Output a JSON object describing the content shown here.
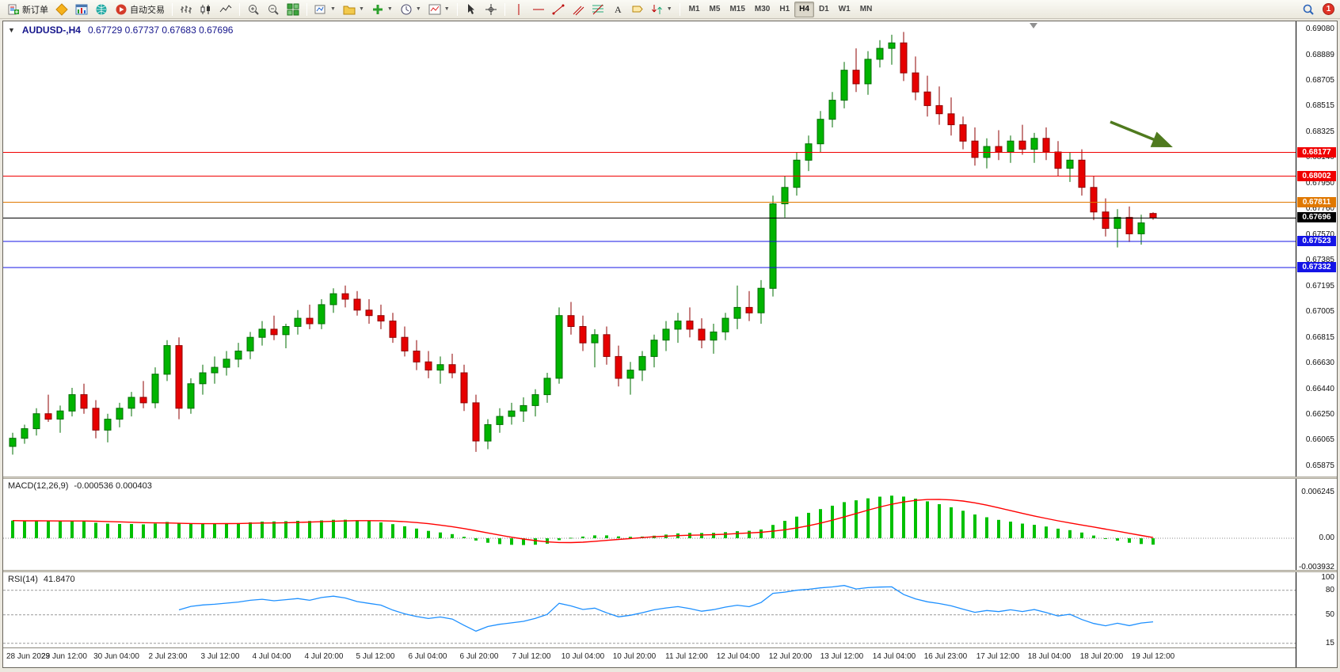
{
  "toolbar": {
    "new_order_label": "新订单",
    "autotrade_label": "自动交易",
    "timeframes": [
      "M1",
      "M5",
      "M15",
      "M30",
      "H1",
      "H4",
      "D1",
      "W1",
      "MN"
    ],
    "active_timeframe": "H4",
    "notification_count": "1",
    "icons": [
      "new-order",
      "metaquotes",
      "charts-window",
      "community",
      "autotrade",
      "bar-chart-type",
      "candlestick-type",
      "line-chart-type",
      "zoom-in",
      "zoom-out",
      "tile-windows",
      "new-chart",
      "profiles",
      "indicators",
      "periods",
      "templates",
      "cursor",
      "crosshair",
      "vertical-line",
      "horizontal-line",
      "trendline",
      "equidistant-channel",
      "fibonacci",
      "text",
      "text-label",
      "arrow-objects",
      "search",
      "alerts"
    ]
  },
  "chart_data": {
    "type": "candlestick",
    "symbol": "AUDUSD",
    "period": "H4",
    "title": "AUDUSD-,H4",
    "ohlc_text": "0.67729 0.67737 0.67683 0.67696",
    "price_axis_max": 0.6908,
    "price_axis_min": 0.65875,
    "price_axis": [
      "0.69080",
      "0.68889",
      "0.68705",
      "0.68515",
      "0.68325",
      "0.68140",
      "0.67950",
      "0.67760",
      "0.67570",
      "0.67385",
      "0.67195",
      "0.67005",
      "0.66815",
      "0.66630",
      "0.66440",
      "0.66250",
      "0.66065",
      "0.65875"
    ],
    "hlines": [
      {
        "price": "0.68177",
        "value": 0.68177,
        "color": "#f00000",
        "role": "resistance"
      },
      {
        "price": "0.68002",
        "value": 0.68002,
        "color": "#f00000",
        "role": "resistance"
      },
      {
        "price": "0.67811",
        "value": 0.67811,
        "color": "#e07800",
        "role": "pivot"
      },
      {
        "price": "0.67696",
        "value": 0.67696,
        "color": "#000000",
        "role": "current-price"
      },
      {
        "price": "0.67523",
        "value": 0.67523,
        "color": "#1414e6",
        "role": "support"
      },
      {
        "price": "0.67332",
        "value": 0.67332,
        "color": "#1414e6",
        "role": "support"
      }
    ],
    "candles": [
      [
        0.6602,
        0.6612,
        0.6596,
        0.6608
      ],
      [
        0.6608,
        0.6618,
        0.6604,
        0.6615
      ],
      [
        0.6615,
        0.663,
        0.661,
        0.6626
      ],
      [
        0.6626,
        0.664,
        0.662,
        0.6622
      ],
      [
        0.6622,
        0.6632,
        0.6612,
        0.6628
      ],
      [
        0.6628,
        0.6645,
        0.6624,
        0.664
      ],
      [
        0.664,
        0.6648,
        0.6626,
        0.663
      ],
      [
        0.663,
        0.6636,
        0.6608,
        0.6614
      ],
      [
        0.6614,
        0.6626,
        0.6605,
        0.6622
      ],
      [
        0.6622,
        0.6634,
        0.6616,
        0.663
      ],
      [
        0.663,
        0.6642,
        0.6624,
        0.6638
      ],
      [
        0.6638,
        0.665,
        0.663,
        0.6634
      ],
      [
        0.6634,
        0.666,
        0.663,
        0.6655
      ],
      [
        0.6655,
        0.668,
        0.665,
        0.6676
      ],
      [
        0.6676,
        0.6682,
        0.6622,
        0.663
      ],
      [
        0.663,
        0.6652,
        0.6626,
        0.6648
      ],
      [
        0.6648,
        0.6662,
        0.664,
        0.6656
      ],
      [
        0.6656,
        0.6668,
        0.6648,
        0.666
      ],
      [
        0.666,
        0.6672,
        0.6654,
        0.6666
      ],
      [
        0.6666,
        0.6678,
        0.666,
        0.6672
      ],
      [
        0.6672,
        0.6686,
        0.6666,
        0.6682
      ],
      [
        0.6682,
        0.6694,
        0.6676,
        0.6688
      ],
      [
        0.6688,
        0.6698,
        0.668,
        0.6684
      ],
      [
        0.6684,
        0.6692,
        0.6674,
        0.669
      ],
      [
        0.669,
        0.6702,
        0.6684,
        0.6696
      ],
      [
        0.6696,
        0.6706,
        0.6688,
        0.6692
      ],
      [
        0.6692,
        0.671,
        0.6688,
        0.6706
      ],
      [
        0.6706,
        0.6718,
        0.67,
        0.6714
      ],
      [
        0.6714,
        0.672,
        0.6704,
        0.671
      ],
      [
        0.671,
        0.6716,
        0.6698,
        0.6702
      ],
      [
        0.6702,
        0.671,
        0.6692,
        0.6698
      ],
      [
        0.6698,
        0.6706,
        0.6688,
        0.6694
      ],
      [
        0.6694,
        0.67,
        0.6678,
        0.6682
      ],
      [
        0.6682,
        0.669,
        0.6668,
        0.6672
      ],
      [
        0.6672,
        0.668,
        0.6658,
        0.6664
      ],
      [
        0.6664,
        0.6672,
        0.6652,
        0.6658
      ],
      [
        0.6658,
        0.6668,
        0.6648,
        0.6662
      ],
      [
        0.6662,
        0.667,
        0.6652,
        0.6656
      ],
      [
        0.6656,
        0.6662,
        0.6628,
        0.6634
      ],
      [
        0.6634,
        0.664,
        0.6598,
        0.6606
      ],
      [
        0.6606,
        0.6622,
        0.66,
        0.6618
      ],
      [
        0.6618,
        0.663,
        0.6612,
        0.6624
      ],
      [
        0.6624,
        0.6634,
        0.6618,
        0.6628
      ],
      [
        0.6628,
        0.6638,
        0.662,
        0.6632
      ],
      [
        0.6632,
        0.6644,
        0.6624,
        0.664
      ],
      [
        0.664,
        0.6656,
        0.6634,
        0.6652
      ],
      [
        0.6652,
        0.6704,
        0.6648,
        0.6698
      ],
      [
        0.6698,
        0.6708,
        0.6684,
        0.669
      ],
      [
        0.669,
        0.6698,
        0.6672,
        0.6678
      ],
      [
        0.6678,
        0.6688,
        0.666,
        0.6684
      ],
      [
        0.6684,
        0.669,
        0.6662,
        0.6668
      ],
      [
        0.6668,
        0.6676,
        0.6646,
        0.6652
      ],
      [
        0.6652,
        0.6664,
        0.664,
        0.6658
      ],
      [
        0.6658,
        0.6672,
        0.665,
        0.6668
      ],
      [
        0.6668,
        0.6684,
        0.666,
        0.668
      ],
      [
        0.668,
        0.6694,
        0.6672,
        0.6688
      ],
      [
        0.6688,
        0.67,
        0.6678,
        0.6694
      ],
      [
        0.6694,
        0.6704,
        0.6682,
        0.6688
      ],
      [
        0.6688,
        0.6696,
        0.6674,
        0.668
      ],
      [
        0.668,
        0.6692,
        0.667,
        0.6686
      ],
      [
        0.6686,
        0.67,
        0.668,
        0.6696
      ],
      [
        0.6696,
        0.672,
        0.6688,
        0.6704
      ],
      [
        0.6704,
        0.6716,
        0.6694,
        0.67
      ],
      [
        0.67,
        0.6724,
        0.6692,
        0.6718
      ],
      [
        0.6718,
        0.6786,
        0.6712,
        0.678
      ],
      [
        0.678,
        0.68,
        0.677,
        0.6792
      ],
      [
        0.6792,
        0.6818,
        0.6786,
        0.6812
      ],
      [
        0.6812,
        0.683,
        0.6804,
        0.6824
      ],
      [
        0.6824,
        0.6848,
        0.6818,
        0.6842
      ],
      [
        0.6842,
        0.6862,
        0.6836,
        0.6856
      ],
      [
        0.6856,
        0.6884,
        0.685,
        0.6878
      ],
      [
        0.6878,
        0.6894,
        0.6862,
        0.6868
      ],
      [
        0.6868,
        0.6892,
        0.686,
        0.6886
      ],
      [
        0.6886,
        0.69,
        0.688,
        0.6894
      ],
      [
        0.6894,
        0.6904,
        0.6882,
        0.6898
      ],
      [
        0.6898,
        0.6906,
        0.687,
        0.6876
      ],
      [
        0.6876,
        0.6888,
        0.6856,
        0.6862
      ],
      [
        0.6862,
        0.6874,
        0.6844,
        0.6852
      ],
      [
        0.6852,
        0.6866,
        0.6838,
        0.6846
      ],
      [
        0.6846,
        0.6858,
        0.683,
        0.6838
      ],
      [
        0.6838,
        0.6844,
        0.682,
        0.6826
      ],
      [
        0.6826,
        0.6836,
        0.6808,
        0.6814
      ],
      [
        0.6814,
        0.6828,
        0.6806,
        0.6822
      ],
      [
        0.6822,
        0.6834,
        0.6812,
        0.6818
      ],
      [
        0.6818,
        0.683,
        0.681,
        0.6826
      ],
      [
        0.6826,
        0.6838,
        0.6816,
        0.682
      ],
      [
        0.682,
        0.6832,
        0.681,
        0.6828
      ],
      [
        0.6828,
        0.6836,
        0.6812,
        0.6818
      ],
      [
        0.6818,
        0.6826,
        0.68,
        0.6806
      ],
      [
        0.6806,
        0.6818,
        0.6796,
        0.6812
      ],
      [
        0.6812,
        0.682,
        0.6786,
        0.6792
      ],
      [
        0.6792,
        0.68,
        0.6768,
        0.6774
      ],
      [
        0.6774,
        0.6784,
        0.6756,
        0.6762
      ],
      [
        0.6762,
        0.6776,
        0.6748,
        0.677
      ],
      [
        0.677,
        0.6778,
        0.6752,
        0.6758
      ],
      [
        0.6758,
        0.6772,
        0.675,
        0.6766
      ],
      [
        0.67729,
        0.67737,
        0.67683,
        0.67696
      ]
    ],
    "time_labels": [
      "28 Jun 2023",
      "29 Jun 12:00",
      "30 Jun 04:00",
      "2 Jul 23:00",
      "3 Jul 12:00",
      "4 Jul 04:00",
      "4 Jul 20:00",
      "5 Jul 12:00",
      "6 Jul 04:00",
      "6 Jul 20:00",
      "7 Jul 12:00",
      "10 Jul 04:00",
      "10 Jul 20:00",
      "11 Jul 12:00",
      "12 Jul 04:00",
      "12 Jul 20:00",
      "13 Jul 12:00",
      "14 Jul 04:00",
      "16 Jul 23:00",
      "17 Jul 12:00",
      "18 Jul 04:00",
      "18 Jul 20:00",
      "19 Jul 12:00"
    ],
    "macd": {
      "label": "MACD(12,26,9)",
      "values_text": "-0.000536 0.000403",
      "axis_labels": [
        "0.006245",
        "0.00",
        "-0.003932"
      ]
    },
    "rsi": {
      "label": "RSI(14)",
      "value_text": "41.8470",
      "axis_labels": [
        "100",
        "80",
        "50",
        "15"
      ],
      "levels": [
        80,
        50,
        15
      ]
    },
    "colors": {
      "up": "#00b400",
      "up_dark": "#006e00",
      "down": "#e60000",
      "down_dark": "#8f0000",
      "macd": "#00c000",
      "signal": "#ff0000",
      "rsi": "#1e90ff",
      "arrow": "#4f7a1e"
    }
  }
}
